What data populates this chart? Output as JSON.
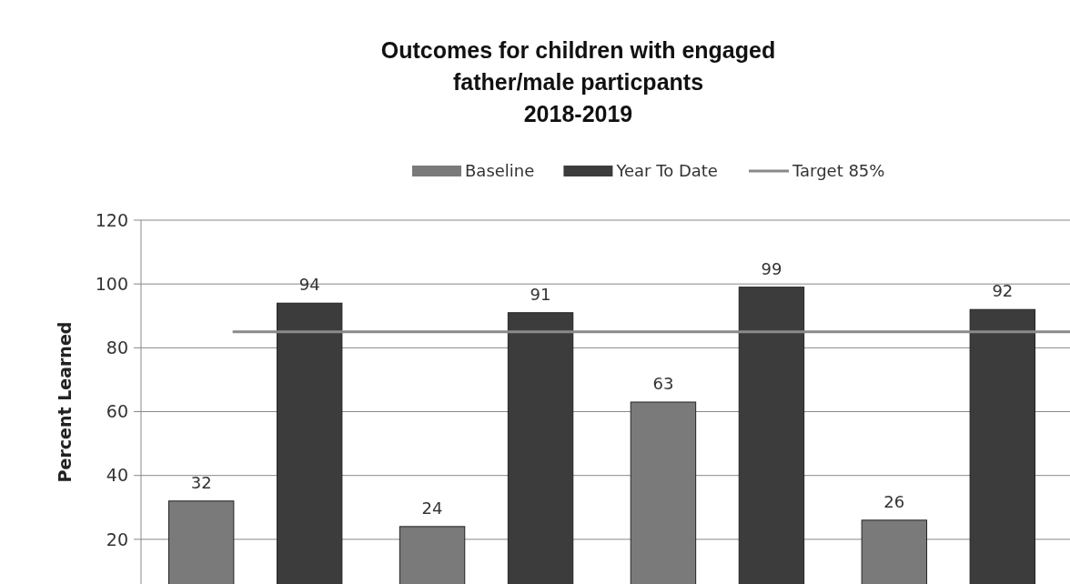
{
  "chart_data": {
    "type": "bar",
    "title": "Outcomes for children with engaged\nfather/male particpants\n2018-2019",
    "ylabel": "Percent Learned",
    "categories": [
      null,
      null,
      null,
      null
    ],
    "series": [
      {
        "name": "Baseline",
        "color": "#7a7a7a",
        "values": [
          32,
          24,
          63,
          26
        ]
      },
      {
        "name": "Year To Date",
        "color": "#3c3c3c",
        "values": [
          94,
          91,
          99,
          92
        ]
      }
    ],
    "ref_lines": [
      {
        "axis": "y",
        "value": 85,
        "label": "Target 85%",
        "color": "#8a8a8a"
      }
    ],
    "ylim": [
      6,
      120
    ],
    "yticks": [
      20,
      40,
      60,
      80,
      100,
      120
    ],
    "grid": "y",
    "legend": "top",
    "data_labels": true
  }
}
